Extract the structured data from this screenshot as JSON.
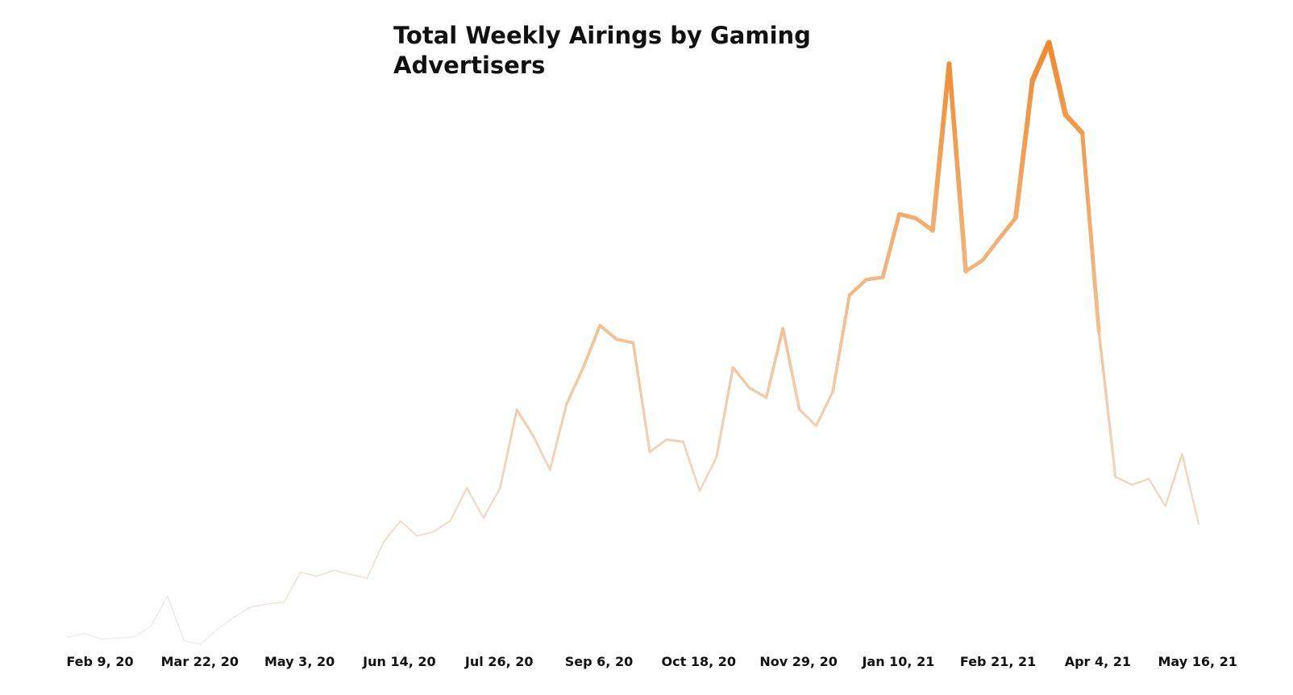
{
  "chart_data": {
    "type": "line",
    "title": "Total Weekly Airings by Gaming Advertisers",
    "xlabel": "",
    "ylabel": "",
    "x_tick_labels": [
      "Feb 9, 20",
      "Mar 22, 20",
      "May 3, 20",
      "Jun 14, 20",
      "Jul 26, 20",
      "Sep 6, 20",
      "Oct 18, 20",
      "Nov 29, 20",
      "Jan 10, 21",
      "Feb 21, 21",
      "Apr 4, 21",
      "May 16, 21"
    ],
    "grid": false,
    "legend": "none",
    "y_axis_shown": false,
    "ylim": [
      0,
      100
    ],
    "line_gradient": {
      "low_color": "#ececec",
      "high_color": "#f18a2c"
    },
    "series": [
      {
        "values": [
          1.2,
          1.8,
          0.9,
          1.0,
          1.2,
          3.0,
          8.0,
          0.6,
          0.0,
          2.5,
          4.5,
          6.2,
          6.7,
          7.0,
          12.0,
          11.3,
          12.3,
          11.6,
          11.0,
          17.0,
          20.5,
          18.0,
          18.7,
          20.5,
          26.0,
          21.0,
          26.0,
          39.0,
          34.6,
          29.0,
          40.0,
          46.0,
          53.0,
          50.7,
          50.1,
          32.0,
          34.0,
          33.7,
          25.5,
          31.0,
          46.0,
          42.6,
          41.0,
          52.5,
          39.0,
          36.3,
          42.0,
          58.0,
          60.6,
          61.0,
          71.5,
          70.8,
          68.8,
          96.5,
          62.0,
          63.8,
          67.4,
          70.9,
          93.7,
          100.0,
          88.0,
          85.0,
          52.0,
          27.8,
          26.5,
          27.5,
          23.0,
          31.6,
          20.0
        ]
      }
    ]
  }
}
